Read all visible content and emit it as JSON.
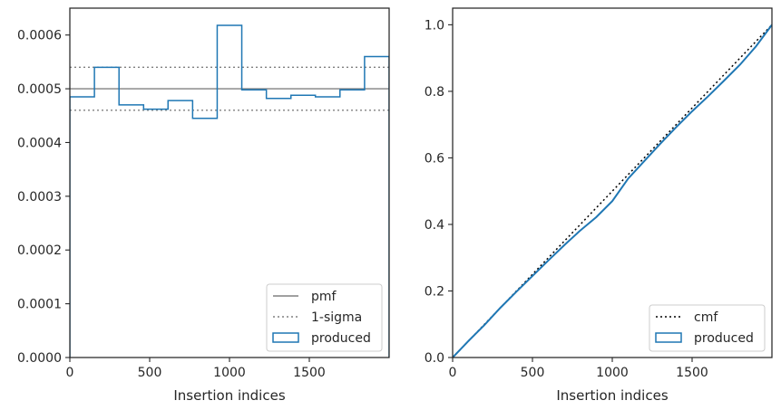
{
  "chart_data": [
    {
      "type": "step-histogram",
      "xlabel": "Insertion indices",
      "ylabel": "",
      "xlim": [
        0,
        2000
      ],
      "ylim": [
        0,
        0.00065
      ],
      "x_ticks": [
        {
          "value": 0,
          "label": "0"
        },
        {
          "value": 500,
          "label": "500"
        },
        {
          "value": 1000,
          "label": "1000"
        },
        {
          "value": 1500,
          "label": "1500"
        }
      ],
      "y_ticks": [
        {
          "value": 0,
          "label": "0.0000"
        },
        {
          "value": 0.0001,
          "label": "0.0001"
        },
        {
          "value": 0.0002,
          "label": "0.0002"
        },
        {
          "value": 0.0003,
          "label": "0.0003"
        },
        {
          "value": 0.0004,
          "label": "0.0004"
        },
        {
          "value": 0.0005,
          "label": "0.0005"
        },
        {
          "value": 0.0006,
          "label": "0.0006"
        }
      ],
      "bin_edges": [
        0,
        154,
        308,
        462,
        615,
        769,
        923,
        1077,
        1231,
        1385,
        1538,
        1692,
        1846,
        2000
      ],
      "series": [
        {
          "name": "produced",
          "color": "#1f77b4",
          "values": [
            0.000485,
            0.00054,
            0.00047,
            0.000462,
            0.000478,
            0.000445,
            0.000618,
            0.000498,
            0.000482,
            0.000488,
            0.000485,
            0.000498,
            0.00056
          ]
        }
      ],
      "reference_lines": [
        {
          "name": "pmf",
          "value": 0.0005,
          "style": "solid",
          "color": "#808080"
        },
        {
          "name": "1-sigma",
          "values": [
            0.00054,
            0.00046
          ],
          "style": "dotted",
          "color": "#808080"
        }
      ],
      "legend": {
        "placement": "lower right",
        "entries": [
          {
            "label": "pmf",
            "kind": "line-solid",
            "color": "#808080"
          },
          {
            "label": "1-sigma",
            "kind": "line-dotted",
            "color": "#808080"
          },
          {
            "label": "produced",
            "kind": "patch",
            "color": "#1f77b4"
          }
        ]
      }
    },
    {
      "type": "line",
      "xlabel": "Insertion indices",
      "ylabel": "",
      "xlim": [
        0,
        2000
      ],
      "ylim": [
        0,
        1.05
      ],
      "x_ticks": [
        {
          "value": 0,
          "label": "0"
        },
        {
          "value": 500,
          "label": "500"
        },
        {
          "value": 1000,
          "label": "1000"
        },
        {
          "value": 1500,
          "label": "1500"
        }
      ],
      "y_ticks": [
        {
          "value": 0,
          "label": "0.0"
        },
        {
          "value": 0.2,
          "label": "0.2"
        },
        {
          "value": 0.4,
          "label": "0.4"
        },
        {
          "value": 0.6,
          "label": "0.6"
        },
        {
          "value": 0.8,
          "label": "0.8"
        },
        {
          "value": 1.0,
          "label": "1.0"
        }
      ],
      "series": [
        {
          "name": "cmf",
          "style": "dotted",
          "color": "#000000",
          "x": [
            0,
            2000
          ],
          "y": [
            0,
            1.0
          ]
        },
        {
          "name": "produced",
          "style": "solid",
          "color": "#1f77b4",
          "x": [
            0,
            100,
            200,
            300,
            400,
            500,
            600,
            700,
            800,
            900,
            1000,
            1100,
            1200,
            1300,
            1400,
            1500,
            1600,
            1700,
            1800,
            1900,
            2000
          ],
          "y": [
            0,
            0.05,
            0.098,
            0.15,
            0.198,
            0.245,
            0.292,
            0.338,
            0.382,
            0.422,
            0.47,
            0.538,
            0.59,
            0.642,
            0.692,
            0.74,
            0.785,
            0.832,
            0.88,
            0.935,
            1.0
          ]
        }
      ],
      "legend": {
        "placement": "lower right",
        "entries": [
          {
            "label": "cmf",
            "kind": "line-dotted",
            "color": "#000000"
          },
          {
            "label": "produced",
            "kind": "patch",
            "color": "#1f77b4"
          }
        ]
      }
    }
  ]
}
